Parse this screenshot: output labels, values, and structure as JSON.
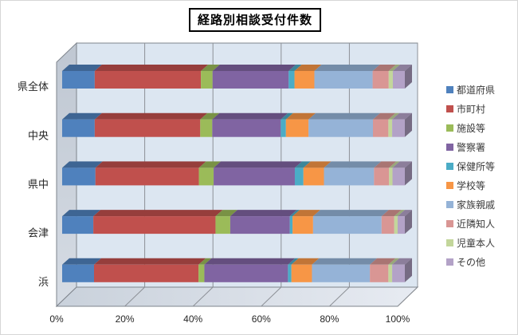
{
  "chart_data": {
    "type": "bar",
    "variant": "3d-horizontal-100%-stacked",
    "title": "経路別相談受付件数",
    "categories": [
      "県全体",
      "中央",
      "県中",
      "会津",
      "浜"
    ],
    "series": [
      {
        "name": "都道府県",
        "color": "#4F81BD",
        "values": [
          9.5,
          9.5,
          9.7,
          9.1,
          9.3
        ]
      },
      {
        "name": "市町村",
        "color": "#C0504D",
        "values": [
          31.0,
          30.8,
          30.2,
          35.7,
          30.5
        ]
      },
      {
        "name": "施設等",
        "color": "#9BBB59",
        "values": [
          3.4,
          3.5,
          4.3,
          4.3,
          1.7
        ]
      },
      {
        "name": "警察署",
        "color": "#8064A2",
        "values": [
          22.2,
          20.0,
          23.7,
          17.4,
          24.4
        ]
      },
      {
        "name": "保健所等",
        "color": "#4BACC6",
        "values": [
          1.7,
          1.5,
          2.5,
          0.8,
          1.0
        ]
      },
      {
        "name": "学校等",
        "color": "#F79646",
        "values": [
          5.8,
          6.6,
          6.0,
          6.0,
          6.0
        ]
      },
      {
        "name": "家族親戚",
        "color": "#95B3D7",
        "values": [
          17.0,
          18.8,
          14.6,
          20.0,
          16.9
        ]
      },
      {
        "name": "近隣知人",
        "color": "#D99694",
        "values": [
          4.7,
          4.5,
          4.4,
          3.7,
          5.4
        ]
      },
      {
        "name": "児童本人",
        "color": "#C3D69B",
        "values": [
          1.2,
          1.1,
          1.0,
          1.0,
          1.1
        ]
      },
      {
        "name": "その他",
        "color": "#B3A2C7",
        "values": [
          3.5,
          3.7,
          3.6,
          2.1,
          3.7
        ]
      }
    ],
    "x_axis": {
      "ticks": [
        "0%",
        "20%",
        "40%",
        "60%",
        "80%",
        "100%"
      ],
      "min": 0,
      "max": 100
    },
    "legend_position": "right",
    "grid": true,
    "plot_colors": {
      "back_wall": "#DCE6F1",
      "side_wall_top": "#BFC7D2",
      "side_wall_bottom": "#D6DCE4",
      "floor_left": "#C9D1DB",
      "floor_right": "#E7EBF2",
      "gridline": "#8C9096",
      "wall_edge": "#7E848C",
      "text": "#262626"
    }
  }
}
